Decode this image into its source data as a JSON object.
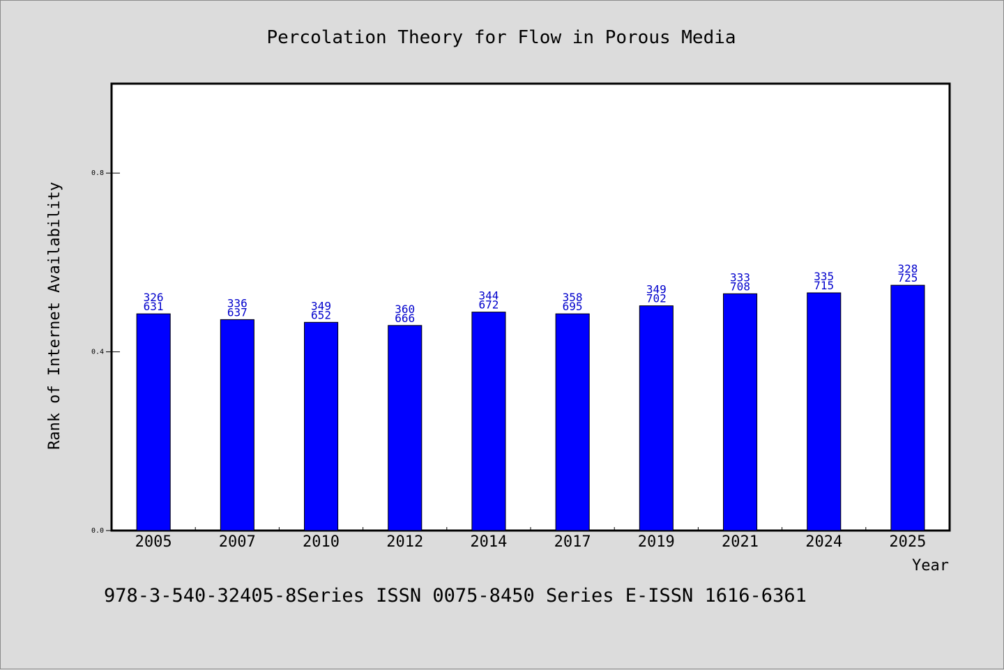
{
  "chart_data": {
    "type": "bar",
    "title": "Percolation Theory for Flow in Porous Media",
    "xlabel": "Year",
    "ylabel": "Rank of Internet Availability",
    "categories": [
      "2005",
      "2007",
      "2010",
      "2012",
      "2014",
      "2017",
      "2019",
      "2021",
      "2024",
      "2025"
    ],
    "values": [
      0.485,
      0.472,
      0.466,
      0.459,
      0.489,
      0.485,
      0.503,
      0.53,
      0.532,
      0.549
    ],
    "data_labels": [
      [
        "326",
        "631"
      ],
      [
        "336",
        "637"
      ],
      [
        "349",
        "652"
      ],
      [
        "360",
        "666"
      ],
      [
        "344",
        "672"
      ],
      [
        "358",
        "695"
      ],
      [
        "349",
        "702"
      ],
      [
        "333",
        "708"
      ],
      [
        "335",
        "715"
      ],
      [
        "328",
        "725"
      ]
    ],
    "ylim": [
      0,
      1.0
    ],
    "yticks": [
      0.0,
      0.4,
      0.8
    ],
    "ytick_labels": [
      "0.0",
      "0.4",
      "0.8"
    ],
    "grid": false,
    "legend": "none",
    "bar_color": "#0000ff",
    "label_color": "#0000cc"
  },
  "footer": {
    "text": "978-3-540-32405-8Series ISSN 0075-8450 Series E-ISSN 1616-6361"
  },
  "colors": {
    "background": "#dcdcdc",
    "plot_background": "#ffffff",
    "axis": "#000000"
  }
}
